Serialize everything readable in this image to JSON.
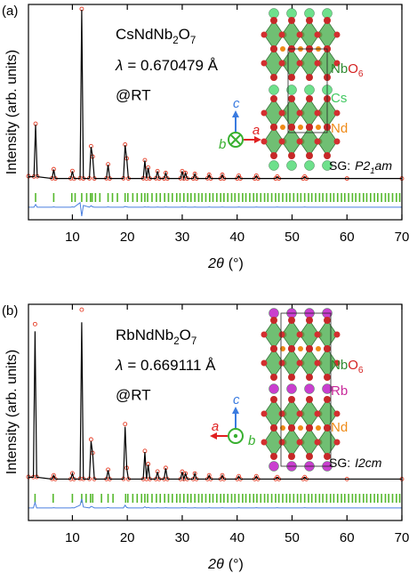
{
  "chart_data": [
    {
      "type": "line",
      "panel_label": "(a)",
      "formula": [
        "CsNdNb",
        "2",
        "O",
        "7"
      ],
      "wavelength": [
        "λ",
        "= 0.670479 Å"
      ],
      "condition": "@RT",
      "octahedra_label": [
        "Nb",
        "O",
        "6"
      ],
      "a_site_label": "Cs",
      "nd_label": "Nd",
      "space_group": [
        "SG:",
        "P2",
        "1",
        "am"
      ],
      "axis_labels": {
        "a": "a",
        "b": "b",
        "c": "c"
      },
      "xlabel": [
        "2θ",
        "(°)"
      ],
      "ylabel": "Intensity (arb. units)",
      "xlim": [
        2,
        70
      ],
      "ylim": [
        -20,
        100
      ],
      "xticks": [
        10,
        20,
        30,
        40,
        50,
        60,
        70
      ],
      "x": [
        2,
        3.0,
        3.3,
        3.6,
        6.3,
        6.6,
        6.9,
        9.7,
        10.0,
        10.3,
        11.4,
        11.7,
        12.0,
        13.1,
        13.4,
        13.7,
        14.0,
        16.2,
        16.5,
        16.8,
        19.3,
        19.6,
        19.9,
        20.2,
        22.9,
        23.2,
        23.5,
        23.8,
        24.1,
        25.2,
        25.5,
        25.8,
        26.7,
        27.0,
        27.3,
        29.7,
        30.0,
        30.3,
        30.6,
        30.9,
        32.0,
        32.3,
        32.6,
        34.6,
        34.9,
        35.2,
        37.0,
        37.3,
        37.6,
        40.0,
        40.3,
        40.6,
        43.2,
        43.5,
        43.8,
        47.0,
        47.3,
        47.6,
        52.0,
        52.3,
        52.6,
        60,
        70
      ],
      "series": [
        {
          "style": "markers",
          "color": "#e53d26",
          "values": [
            4.3,
            4.1,
            33.5,
            4.2,
            3.1,
            8.2,
            3.0,
            3.1,
            7.2,
            2.9,
            3.2,
            97.5,
            3.0,
            3.1,
            21,
            15.2,
            3.0,
            3.1,
            10.9,
            3.0,
            3.1,
            21.9,
            14.2,
            3.0,
            3.1,
            13.2,
            3.0,
            9.1,
            3.0,
            3.1,
            7.1,
            3.0,
            3.0,
            6.1,
            3.0,
            3.1,
            7.1,
            3.0,
            6.1,
            3.0,
            3.0,
            5.6,
            3.0,
            3.1,
            5.1,
            3.0,
            3.0,
            5.1,
            3.0,
            3.0,
            4.6,
            3.0,
            3.0,
            4.6,
            3.0,
            3.0,
            4.1,
            3.0,
            3.0,
            4.1,
            3.0,
            3.0,
            3.0
          ]
        },
        {
          "style": "line",
          "color": "#000000",
          "values": [
            4,
            4,
            33,
            4,
            3,
            8,
            3,
            3,
            7,
            3,
            3,
            97,
            3,
            3,
            20.6,
            15,
            3,
            3,
            10.7,
            3,
            3,
            21.6,
            14,
            3,
            3,
            13,
            3,
            9,
            3,
            3,
            7,
            3,
            3,
            6,
            3,
            3,
            7,
            3,
            6,
            3,
            3,
            5.5,
            3,
            3,
            5,
            3,
            3,
            5,
            3,
            3,
            4.5,
            3,
            3,
            4.5,
            3,
            3,
            4,
            3,
            3,
            4,
            3,
            3,
            3
          ]
        },
        {
          "style": "line",
          "color": "#4a7fe0",
          "values": [
            -13,
            -13,
            -11.5,
            -13,
            -13,
            -12.8,
            -13,
            -13,
            -12.8,
            -13,
            -10.5,
            -18,
            -12,
            -13,
            -12.2,
            -12.8,
            -13,
            -13,
            -12.8,
            -13,
            -13,
            -12.6,
            -12.8,
            -13,
            -13,
            -12.8,
            -13,
            -12.9,
            -13,
            -13,
            -12.9,
            -13,
            -13,
            -12.9,
            -13,
            -13,
            -12.9,
            -13,
            -12.9,
            -13,
            -13,
            -12.9,
            -13,
            -13,
            -12.9,
            -13,
            -13,
            -12.9,
            -13,
            -13,
            -12.9,
            -13,
            -13,
            -12.9,
            -13,
            -13,
            -12.9,
            -13,
            -13,
            -12.9,
            -13,
            -13,
            -13
          ]
        }
      ],
      "bragg_color": "#55b82c",
      "bragg_positions": [
        3.3,
        6.6,
        9.9,
        10.5,
        11.7,
        12.6,
        13.3,
        13.6,
        14.2,
        15.0,
        16.5,
        17.3,
        18.2,
        19.6,
        20.1,
        21.0,
        21.8,
        22.6,
        23.2,
        23.7,
        24.5,
        25.3,
        26.0,
        26.8,
        27.5,
        28.2,
        29.0,
        29.6,
        30.3,
        31.0,
        31.6,
        32.3,
        33.0,
        33.6,
        34.3,
        35.0,
        35.6,
        36.3,
        37.0,
        37.6,
        38.3,
        39.0,
        39.6,
        40.3,
        41.0,
        41.6,
        42.3,
        43.0,
        43.6,
        44.3,
        45.0,
        45.6,
        46.3,
        47.0,
        47.6,
        48.3,
        49.0,
        49.6,
        50.3,
        51.0,
        51.6,
        52.3,
        53.0,
        53.6,
        54.3,
        55.0,
        55.6,
        56.3,
        57.0,
        57.6,
        58.3,
        59.0,
        59.6,
        60.3,
        61.0,
        61.6,
        62.3,
        63.0,
        63.6,
        64.3,
        65.0,
        65.6,
        66.3,
        67.0,
        67.6,
        68.3,
        69.0,
        69.6
      ]
    },
    {
      "type": "line",
      "panel_label": "(b)",
      "formula": [
        "RbNdNb",
        "2",
        "O",
        "7"
      ],
      "wavelength": [
        "λ",
        "= 0.669111 Å"
      ],
      "condition": "@RT",
      "octahedra_label": [
        "Nb",
        "O",
        "6"
      ],
      "a_site_label": "Rb",
      "nd_label": "Nd",
      "space_group": [
        "SG:",
        "I2cm"
      ],
      "axis_labels": {
        "a": "a",
        "b": "b",
        "c": "c"
      },
      "xlabel": [
        "2θ",
        "(°)"
      ],
      "ylabel": "Intensity (arb. units)",
      "xlim": [
        2,
        70
      ],
      "ylim": [
        -20,
        100
      ],
      "xticks": [
        10,
        20,
        30,
        40,
        50,
        60,
        70
      ],
      "x": [
        2,
        2.9,
        3.2,
        3.5,
        6.3,
        6.6,
        6.9,
        9.7,
        10.0,
        10.3,
        11.4,
        11.7,
        12.0,
        13.1,
        13.4,
        13.7,
        14.0,
        16.2,
        16.5,
        16.8,
        19.3,
        19.6,
        19.9,
        20.2,
        22.9,
        23.2,
        23.5,
        23.8,
        24.1,
        25.2,
        25.5,
        25.8,
        26.7,
        27.0,
        27.3,
        29.7,
        30.0,
        30.3,
        30.6,
        30.9,
        32.0,
        32.3,
        32.6,
        34.6,
        34.9,
        35.2,
        37.0,
        37.3,
        37.6,
        40.0,
        40.3,
        40.6,
        43.2,
        43.5,
        43.8,
        47.0,
        47.3,
        47.6,
        52.0,
        52.3,
        52.6,
        60,
        70
      ],
      "series": [
        {
          "style": "markers",
          "color": "#e53d26",
          "values": [
            4.2,
            4.1,
            89,
            4.2,
            3.1,
            5.1,
            3.0,
            3.0,
            6.2,
            3.0,
            3.2,
            97,
            3.1,
            3.1,
            25,
            17.5,
            3.0,
            3.0,
            8.2,
            3.0,
            3.1,
            33.5,
            9.2,
            3.0,
            3.0,
            18.6,
            3.0,
            11.3,
            3.0,
            3.0,
            7.2,
            3.0,
            3.0,
            9.2,
            3.0,
            3.0,
            7.1,
            3.0,
            6.1,
            3.0,
            3.0,
            6.1,
            3.0,
            3.0,
            5.1,
            3.0,
            3.0,
            5.1,
            3.0,
            3.0,
            4.6,
            3.0,
            3.0,
            4.6,
            3.0,
            3.0,
            4.1,
            3.0,
            3.0,
            4.1,
            3.0,
            3.0,
            3.0
          ]
        },
        {
          "style": "line",
          "color": "#000000",
          "values": [
            4,
            4,
            85,
            4,
            3,
            5,
            3,
            3,
            6,
            3,
            3,
            90,
            3,
            3,
            24,
            17,
            3,
            3,
            8,
            3,
            3,
            32,
            9,
            3,
            3,
            18,
            3,
            11,
            3,
            3,
            7,
            3,
            3,
            9,
            3,
            3,
            7,
            3,
            6,
            3,
            3,
            6,
            3,
            3,
            5,
            3,
            3,
            5,
            3,
            3,
            4.5,
            3,
            3,
            4.5,
            3,
            3,
            4,
            3,
            3,
            4,
            3,
            3,
            3
          ]
        },
        {
          "style": "line",
          "color": "#4a7fe0",
          "values": [
            -13,
            -13,
            -10,
            -13,
            -13,
            -12.9,
            -13,
            -13,
            -12.9,
            -13,
            -11.5,
            -8,
            -12.5,
            -13,
            -12.2,
            -12.5,
            -13,
            -13,
            -12.8,
            -13,
            -13,
            -11.5,
            -12.8,
            -13,
            -13,
            -12.4,
            -13,
            -12.7,
            -13,
            -13,
            -12.9,
            -13,
            -13,
            -12.9,
            -13,
            -13,
            -12.9,
            -13,
            -12.9,
            -13,
            -13,
            -12.9,
            -13,
            -13,
            -12.9,
            -13,
            -13,
            -12.9,
            -13,
            -13,
            -12.9,
            -13,
            -13,
            -12.9,
            -13,
            -13,
            -12.9,
            -13,
            -13,
            -12.9,
            -13,
            -13,
            -13
          ]
        }
      ],
      "bragg_color": "#55b82c",
      "bragg_positions": [
        3.2,
        6.5,
        10.0,
        11.7,
        12.5,
        13.3,
        13.7,
        15.3,
        16.5,
        17.4,
        19.7,
        20.1,
        21.0,
        21.8,
        22.6,
        23.2,
        23.7,
        24.5,
        25.3,
        26.0,
        26.8,
        27.5,
        28.2,
        29.0,
        29.6,
        30.3,
        31.0,
        31.6,
        32.3,
        33.0,
        33.6,
        34.3,
        35.0,
        35.6,
        36.3,
        37.0,
        37.6,
        38.3,
        39.0,
        39.6,
        40.3,
        41.0,
        41.6,
        42.3,
        43.0,
        43.6,
        44.3,
        45.0,
        45.6,
        46.3,
        47.0,
        47.6,
        48.3,
        49.0,
        49.6,
        50.3,
        51.0,
        51.6,
        52.3,
        53.0,
        53.6,
        54.3,
        55.0,
        55.6,
        56.3,
        57.0,
        57.6,
        58.3,
        59.0,
        59.6,
        60.3,
        61.0,
        61.6,
        62.3,
        63.0,
        63.6,
        64.3,
        65.0,
        65.6,
        66.3,
        67.0,
        67.6,
        68.3,
        69.0,
        69.6
      ]
    }
  ]
}
